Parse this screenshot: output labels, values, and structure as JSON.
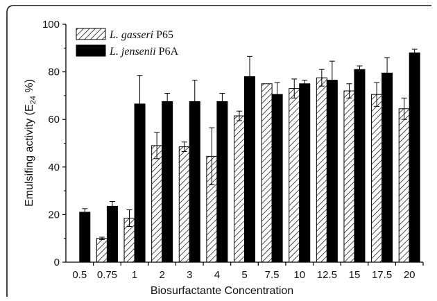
{
  "chart_data": {
    "type": "bar",
    "xlabel": "Biosurfactante Concentration",
    "ylabel_prefix": "Emulsifing activity (E",
    "ylabel_sub": "24",
    "ylabel_suffix": " %)",
    "ylim": [
      0,
      100
    ],
    "yticks": [
      0,
      20,
      40,
      60,
      80,
      100
    ],
    "categories": [
      "0.5",
      "0.75",
      "1",
      "2",
      "3",
      "4",
      "5",
      "7.5",
      "10",
      "12.5",
      "15",
      "17.5",
      "20"
    ],
    "legend_position": "top-left",
    "series": [
      {
        "name_italic": "L. gasseri",
        "name_rest": " P65",
        "pattern": "hatched",
        "values": [
          0,
          10,
          18.5,
          49,
          48.5,
          44.5,
          61.5,
          75,
          73,
          77.5,
          72,
          70.5,
          64.5
        ],
        "errors": [
          0,
          0.5,
          3.5,
          5.5,
          2,
          12,
          2,
          0,
          4,
          3.5,
          3,
          5,
          4.5
        ]
      },
      {
        "name_italic": "L. jensenii",
        "name_rest": " P6A",
        "pattern": "solid",
        "values": [
          21,
          23.5,
          66.5,
          67.5,
          67.5,
          67.5,
          78,
          70.5,
          75,
          76.5,
          81,
          79.5,
          88
        ],
        "errors": [
          1.5,
          2,
          12,
          3.5,
          9,
          3.5,
          8.5,
          5,
          1.5,
          8,
          1.5,
          6.5,
          1.5
        ]
      }
    ],
    "colors": {
      "hatched_fill": "#ffffff",
      "hatch_line": "#000000",
      "solid_fill": "#000000",
      "axis": "#000000"
    }
  }
}
